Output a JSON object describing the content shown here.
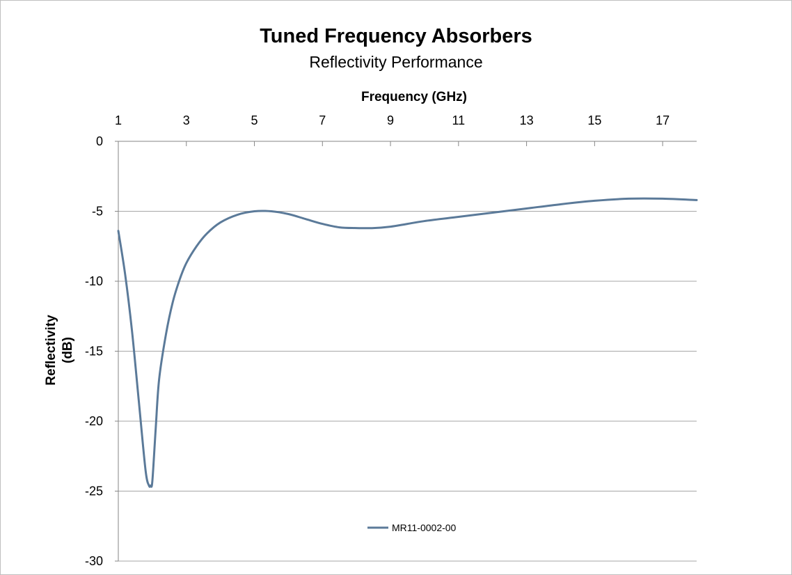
{
  "chart_data": {
    "type": "line",
    "title": "Tuned Frequency Absorbers",
    "subtitle": "Reflectivity Performance",
    "xlabel": "Frequency (GHz)",
    "ylabel_line1": "Reflectivity",
    "ylabel_line2": "(dB)",
    "xlim": [
      1,
      18
    ],
    "ylim": [
      -30,
      0
    ],
    "x_ticks": [
      1,
      3,
      5,
      7,
      9,
      11,
      13,
      15,
      17
    ],
    "y_ticks": [
      0,
      -5,
      -10,
      -15,
      -20,
      -25,
      -30
    ],
    "grid": "horizontal",
    "legend_position": "bottom",
    "colors": {
      "series": "#5b7a99",
      "grid": "#a6a6a6",
      "axis": "#868686"
    },
    "series": [
      {
        "name": "MR11-0002-00",
        "x": [
          1.0,
          1.2,
          1.4,
          1.6,
          1.8,
          1.9,
          1.95,
          2.0,
          2.1,
          2.2,
          2.4,
          2.6,
          2.8,
          3.0,
          3.3,
          3.6,
          4.0,
          4.5,
          5.0,
          5.5,
          6.0,
          6.5,
          7.0,
          7.5,
          8.0,
          8.5,
          9.0,
          9.5,
          10.0,
          11.0,
          12.0,
          13.0,
          14.0,
          15.0,
          16.0,
          17.0,
          18.0
        ],
        "y": [
          -6.4,
          -9.5,
          -13.5,
          -18.5,
          -23.5,
          -24.6,
          -24.6,
          -24.3,
          -20.5,
          -17.0,
          -13.8,
          -11.5,
          -9.9,
          -8.7,
          -7.5,
          -6.6,
          -5.8,
          -5.25,
          -5.0,
          -5.0,
          -5.2,
          -5.55,
          -5.9,
          -6.15,
          -6.2,
          -6.2,
          -6.1,
          -5.9,
          -5.7,
          -5.4,
          -5.1,
          -4.8,
          -4.5,
          -4.25,
          -4.1,
          -4.1,
          -4.2
        ]
      }
    ]
  }
}
